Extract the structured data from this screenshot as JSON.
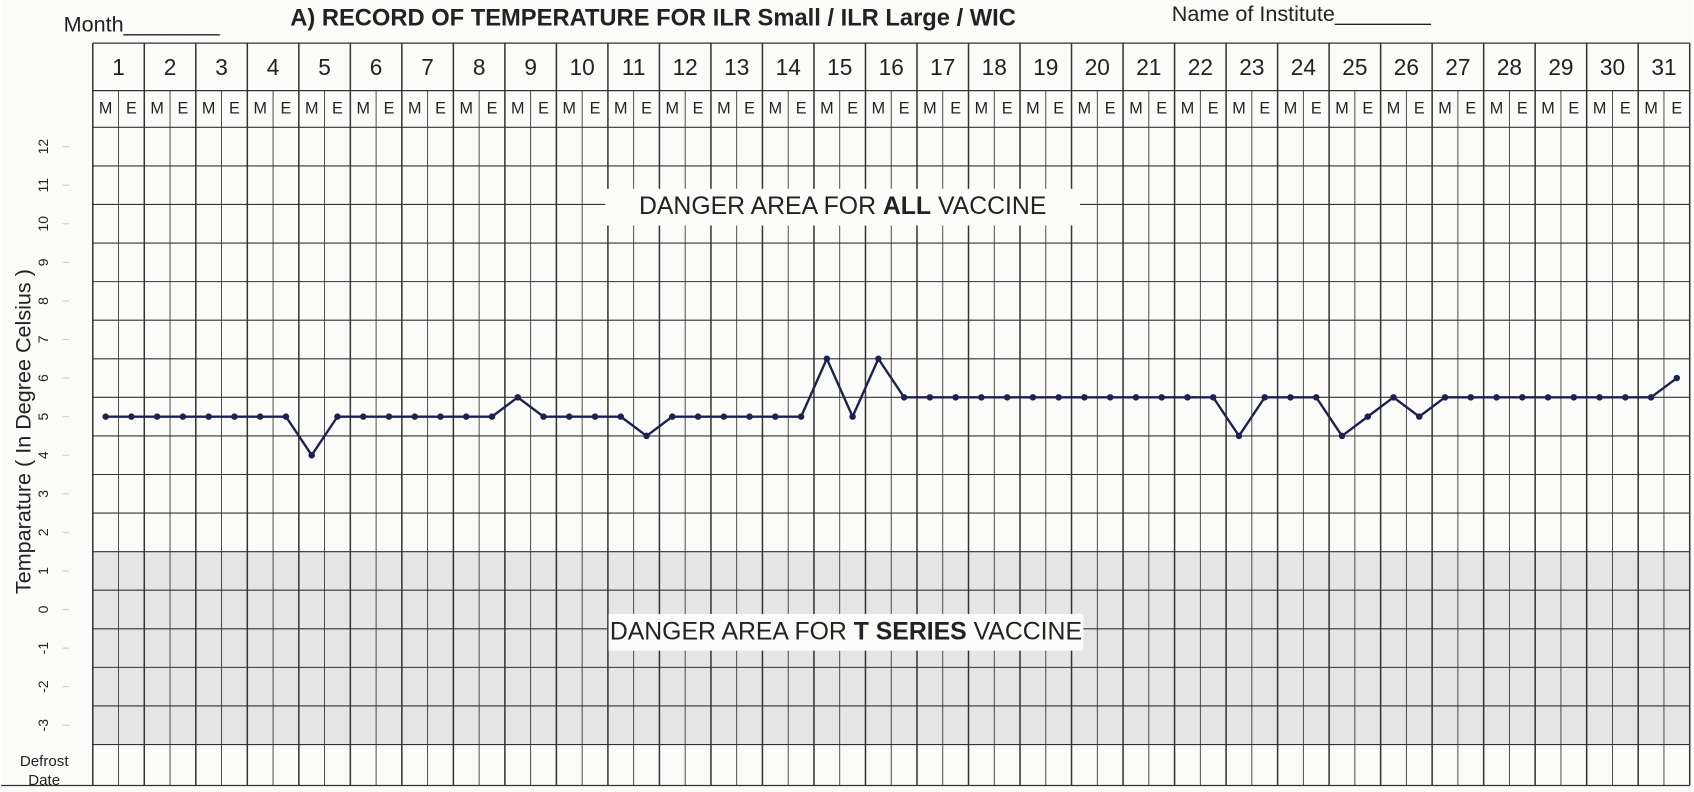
{
  "header": {
    "month": "Month________",
    "title": "A) RECORD OF TEMPERATURE FOR ILR Small / ILR Large / WIC",
    "institute": "Name of Institute________"
  },
  "chart_data": {
    "type": "line",
    "y_label": "Temparature ( In Degree Celsius )",
    "categories": [
      1,
      2,
      3,
      4,
      5,
      6,
      7,
      8,
      9,
      10,
      11,
      12,
      13,
      14,
      15,
      16,
      17,
      18,
      19,
      20,
      21,
      22,
      23,
      24,
      25,
      26,
      27,
      28,
      29,
      30,
      31
    ],
    "shifts": [
      "M",
      "E"
    ],
    "values": [
      [
        5,
        5
      ],
      [
        5,
        5
      ],
      [
        5,
        5
      ],
      [
        5,
        5
      ],
      [
        4,
        5
      ],
      [
        5,
        5
      ],
      [
        5,
        5
      ],
      [
        5,
        5
      ],
      [
        5.5,
        5
      ],
      [
        5,
        5
      ],
      [
        5,
        4.5
      ],
      [
        5,
        5
      ],
      [
        5,
        5
      ],
      [
        5,
        5
      ],
      [
        6.5,
        5
      ],
      [
        6.5,
        5.5
      ],
      [
        5.5,
        5.5
      ],
      [
        5.5,
        5.5
      ],
      [
        5.5,
        5.5
      ],
      [
        5.5,
        5.5
      ],
      [
        5.5,
        5.5
      ],
      [
        5.5,
        5.5
      ],
      [
        4.5,
        5.5
      ],
      [
        5.5,
        5.5
      ],
      [
        4.5,
        5
      ],
      [
        5.5,
        5
      ],
      [
        5.5,
        5.5
      ],
      [
        5.5,
        5.5
      ],
      [
        5.5,
        5.5
      ],
      [
        5.5,
        5.5
      ],
      [
        5.5,
        6
      ]
    ],
    "color": "#1c2150",
    "ylim": [
      -3.5,
      12.5
    ],
    "yticks": [
      -3,
      -2,
      -1,
      0,
      1,
      2,
      3,
      4,
      5,
      6,
      7,
      8,
      9,
      10,
      11,
      12
    ],
    "danger_all": {
      "prefix": "DANGER AREA FOR ",
      "emphasis": "ALL",
      "suffix": " VACCINE"
    },
    "danger_t": {
      "prefix": "DANGER AREA FOR ",
      "emphasis": "T SERIES",
      "suffix": " VACCINE"
    }
  },
  "footer": {
    "defrost": "Defrost",
    "date": "Date"
  }
}
